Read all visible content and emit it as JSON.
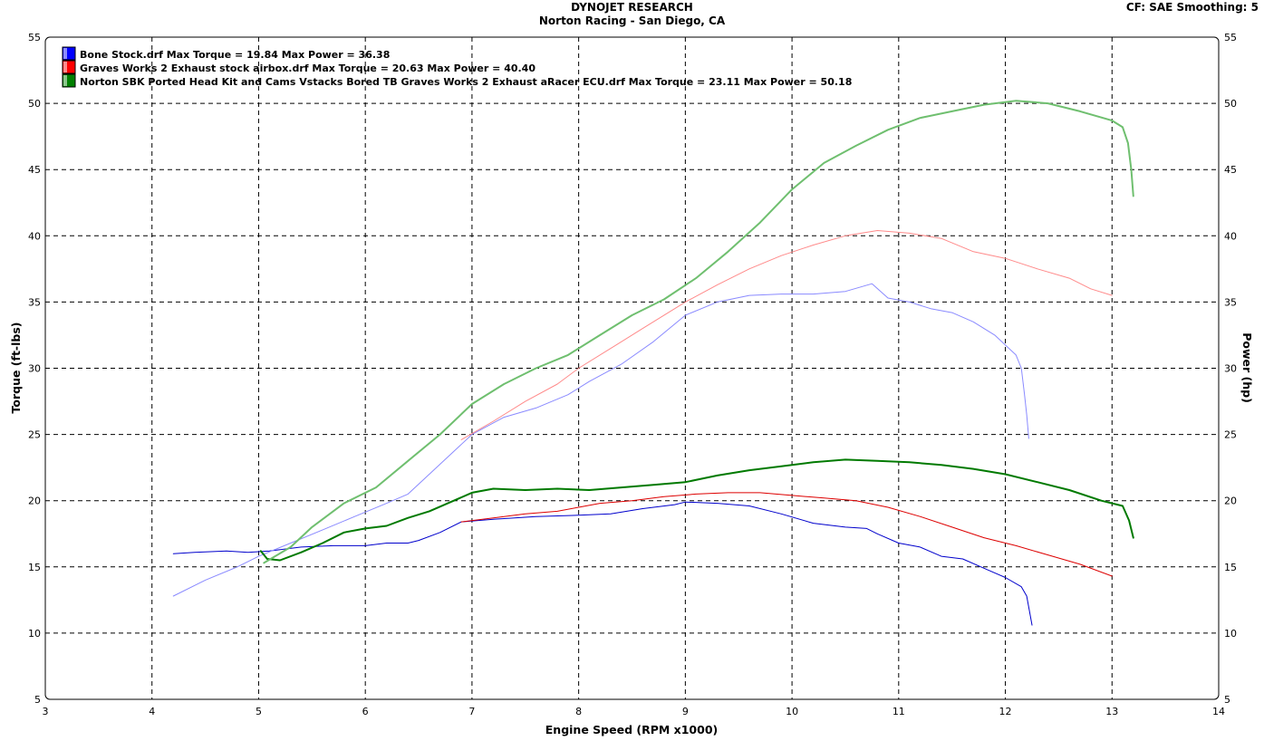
{
  "header": {
    "title": "DYNOJET RESEARCH",
    "subtitle": "Norton Racing - San Diego, CA",
    "cf_info": "CF: SAE  Smoothing: 5"
  },
  "chart_data": {
    "type": "line",
    "xlabel": "Engine Speed (RPM x1000)",
    "ylabel_left": "Torque (ft-lbs)",
    "ylabel_right": "Power (hp)",
    "xlim": [
      3,
      14
    ],
    "ylim": [
      5,
      55
    ],
    "x_ticks": [
      "3",
      "4",
      "5",
      "6",
      "7",
      "8",
      "9",
      "10",
      "11",
      "12",
      "13",
      "14"
    ],
    "y_ticks": [
      "5",
      "10",
      "15",
      "20",
      "25",
      "30",
      "35",
      "40",
      "45",
      "50",
      "55"
    ],
    "grid": true,
    "legend_position": "top-left",
    "legend": [
      {
        "file": "Bone Stock.drf",
        "max_torque": "Max Torque = 19.84",
        "max_power": "Max Power = 36.38",
        "color": "#0000ff"
      },
      {
        "file": "Graves Works 2 Exhaust stock airbox.drf",
        "max_torque": "Max Torque = 20.63",
        "max_power": "Max Power = 40.40",
        "color": "#ff0000"
      },
      {
        "file": "Norton SBK Ported Head Kit and Cams Vstacks Bored TB Graves Works 2 Exhaust aRacer ECU.drf",
        "max_torque": "Max Torque = 23.11",
        "max_power": "Max Power = 50.18",
        "color": "#008000"
      }
    ],
    "series": [
      {
        "name": "Bone Stock.drf",
        "measure": "Torque",
        "color": "#0000cc",
        "width": 1,
        "points": [
          [
            4.2,
            16.0
          ],
          [
            4.4,
            16.1
          ],
          [
            4.7,
            16.2
          ],
          [
            4.9,
            16.1
          ],
          [
            5.1,
            16.2
          ],
          [
            5.4,
            16.5
          ],
          [
            5.7,
            16.6
          ],
          [
            6.0,
            16.6
          ],
          [
            6.2,
            16.8
          ],
          [
            6.4,
            16.8
          ],
          [
            6.5,
            17.0
          ],
          [
            6.7,
            17.6
          ],
          [
            6.9,
            18.4
          ],
          [
            7.2,
            18.6
          ],
          [
            7.6,
            18.8
          ],
          [
            8.0,
            18.9
          ],
          [
            8.3,
            19.0
          ],
          [
            8.6,
            19.4
          ],
          [
            8.9,
            19.7
          ],
          [
            9.0,
            19.9
          ],
          [
            9.3,
            19.8
          ],
          [
            9.6,
            19.6
          ],
          [
            9.9,
            19.0
          ],
          [
            10.2,
            18.3
          ],
          [
            10.5,
            18.0
          ],
          [
            10.7,
            17.9
          ],
          [
            10.8,
            17.5
          ],
          [
            11.0,
            16.8
          ],
          [
            11.2,
            16.5
          ],
          [
            11.4,
            15.8
          ],
          [
            11.6,
            15.6
          ],
          [
            11.8,
            14.9
          ],
          [
            12.0,
            14.2
          ],
          [
            12.15,
            13.5
          ],
          [
            12.2,
            12.8
          ],
          [
            12.23,
            11.5
          ],
          [
            12.25,
            10.6
          ]
        ]
      },
      {
        "name": "Bone Stock.drf",
        "measure": "Power",
        "color": "#8a8aff",
        "width": 1,
        "points": [
          [
            4.2,
            12.8
          ],
          [
            4.5,
            14.0
          ],
          [
            4.8,
            15.0
          ],
          [
            5.0,
            15.8
          ],
          [
            5.3,
            16.8
          ],
          [
            5.6,
            17.8
          ],
          [
            5.9,
            18.8
          ],
          [
            6.2,
            19.8
          ],
          [
            6.4,
            20.5
          ],
          [
            6.6,
            22.0
          ],
          [
            6.8,
            23.5
          ],
          [
            7.0,
            25.0
          ],
          [
            7.3,
            26.3
          ],
          [
            7.6,
            27.0
          ],
          [
            7.9,
            28.0
          ],
          [
            8.1,
            29.0
          ],
          [
            8.4,
            30.3
          ],
          [
            8.7,
            32.0
          ],
          [
            9.0,
            34.0
          ],
          [
            9.3,
            35.0
          ],
          [
            9.6,
            35.5
          ],
          [
            9.9,
            35.6
          ],
          [
            10.2,
            35.6
          ],
          [
            10.5,
            35.8
          ],
          [
            10.75,
            36.38
          ],
          [
            10.9,
            35.3
          ],
          [
            11.1,
            35.0
          ],
          [
            11.3,
            34.5
          ],
          [
            11.5,
            34.2
          ],
          [
            11.7,
            33.5
          ],
          [
            11.9,
            32.5
          ],
          [
            12.1,
            31.0
          ],
          [
            12.15,
            30.0
          ],
          [
            12.18,
            28.0
          ],
          [
            12.2,
            26.5
          ],
          [
            12.22,
            24.7
          ]
        ]
      },
      {
        "name": "Graves Works 2 Exhaust stock airbox.drf",
        "measure": "Torque",
        "color": "#dd0000",
        "width": 1,
        "points": [
          [
            6.9,
            18.4
          ],
          [
            7.2,
            18.7
          ],
          [
            7.5,
            19.0
          ],
          [
            7.8,
            19.2
          ],
          [
            8.0,
            19.5
          ],
          [
            8.2,
            19.8
          ],
          [
            8.5,
            20.0
          ],
          [
            8.8,
            20.3
          ],
          [
            9.1,
            20.5
          ],
          [
            9.4,
            20.6
          ],
          [
            9.7,
            20.6
          ],
          [
            10.0,
            20.4
          ],
          [
            10.3,
            20.2
          ],
          [
            10.6,
            20.0
          ],
          [
            10.9,
            19.5
          ],
          [
            11.2,
            18.8
          ],
          [
            11.5,
            18.0
          ],
          [
            11.8,
            17.2
          ],
          [
            12.1,
            16.6
          ],
          [
            12.4,
            15.9
          ],
          [
            12.7,
            15.2
          ],
          [
            13.0,
            14.3
          ]
        ]
      },
      {
        "name": "Graves Works 2 Exhaust stock airbox.drf",
        "measure": "Power",
        "color": "#ff8a8a",
        "width": 1,
        "points": [
          [
            6.9,
            24.6
          ],
          [
            7.2,
            26.0
          ],
          [
            7.5,
            27.5
          ],
          [
            7.8,
            28.8
          ],
          [
            8.0,
            30.0
          ],
          [
            8.3,
            31.5
          ],
          [
            8.6,
            33.0
          ],
          [
            9.0,
            35.0
          ],
          [
            9.3,
            36.3
          ],
          [
            9.6,
            37.5
          ],
          [
            9.9,
            38.5
          ],
          [
            10.2,
            39.3
          ],
          [
            10.5,
            40.0
          ],
          [
            10.8,
            40.4
          ],
          [
            11.1,
            40.2
          ],
          [
            11.4,
            39.8
          ],
          [
            11.7,
            38.8
          ],
          [
            12.0,
            38.3
          ],
          [
            12.3,
            37.5
          ],
          [
            12.6,
            36.8
          ],
          [
            12.8,
            36.0
          ],
          [
            13.0,
            35.5
          ]
        ]
      },
      {
        "name": "Norton SBK Ported Head Kit and Cams Vstacks Bored TB Graves Works 2 Exhaust aRacer ECU.drf",
        "measure": "Torque",
        "color": "#007a00",
        "width": 2,
        "points": [
          [
            5.02,
            16.2
          ],
          [
            5.08,
            15.6
          ],
          [
            5.2,
            15.5
          ],
          [
            5.4,
            16.1
          ],
          [
            5.6,
            16.8
          ],
          [
            5.8,
            17.6
          ],
          [
            6.0,
            17.9
          ],
          [
            6.2,
            18.1
          ],
          [
            6.4,
            18.7
          ],
          [
            6.6,
            19.2
          ],
          [
            6.8,
            19.9
          ],
          [
            7.0,
            20.6
          ],
          [
            7.2,
            20.9
          ],
          [
            7.5,
            20.8
          ],
          [
            7.8,
            20.9
          ],
          [
            8.1,
            20.8
          ],
          [
            8.4,
            21.0
          ],
          [
            8.7,
            21.2
          ],
          [
            9.0,
            21.4
          ],
          [
            9.3,
            21.9
          ],
          [
            9.6,
            22.3
          ],
          [
            9.9,
            22.6
          ],
          [
            10.2,
            22.9
          ],
          [
            10.5,
            23.1
          ],
          [
            10.8,
            23.0
          ],
          [
            11.1,
            22.9
          ],
          [
            11.4,
            22.7
          ],
          [
            11.7,
            22.4
          ],
          [
            12.0,
            22.0
          ],
          [
            12.3,
            21.4
          ],
          [
            12.6,
            20.8
          ],
          [
            12.9,
            20.0
          ],
          [
            13.1,
            19.6
          ],
          [
            13.16,
            18.5
          ],
          [
            13.2,
            17.2
          ]
        ]
      },
      {
        "name": "Norton SBK Ported Head Kit and Cams Vstacks Bored TB Graves Works 2 Exhaust aRacer ECU.drf",
        "measure": "Power",
        "color": "#6fbf6f",
        "width": 2,
        "points": [
          [
            5.05,
            15.3
          ],
          [
            5.3,
            16.5
          ],
          [
            5.5,
            18.0
          ],
          [
            5.8,
            19.8
          ],
          [
            6.1,
            21.0
          ],
          [
            6.4,
            23.0
          ],
          [
            6.7,
            25.0
          ],
          [
            7.0,
            27.3
          ],
          [
            7.3,
            28.8
          ],
          [
            7.6,
            30.0
          ],
          [
            7.9,
            31.0
          ],
          [
            8.2,
            32.5
          ],
          [
            8.5,
            34.0
          ],
          [
            8.8,
            35.2
          ],
          [
            9.1,
            36.8
          ],
          [
            9.4,
            38.8
          ],
          [
            9.7,
            41.0
          ],
          [
            10.0,
            43.5
          ],
          [
            10.3,
            45.5
          ],
          [
            10.6,
            46.8
          ],
          [
            10.9,
            48.0
          ],
          [
            11.2,
            48.9
          ],
          [
            11.5,
            49.4
          ],
          [
            11.8,
            49.9
          ],
          [
            12.1,
            50.2
          ],
          [
            12.4,
            50.0
          ],
          [
            12.7,
            49.4
          ],
          [
            13.0,
            48.7
          ],
          [
            13.1,
            48.2
          ],
          [
            13.15,
            47.0
          ],
          [
            13.18,
            45.0
          ],
          [
            13.2,
            43.0
          ]
        ]
      }
    ]
  }
}
